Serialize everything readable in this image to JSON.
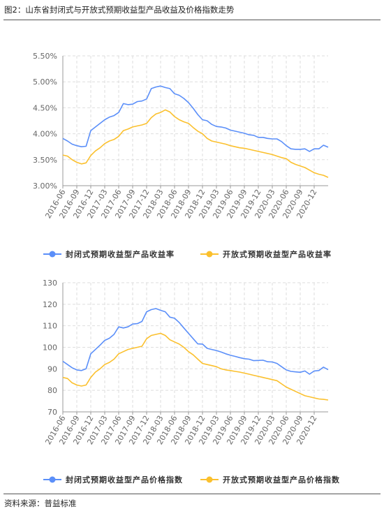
{
  "figure": {
    "title": "图2：山东省封闭式与开放式预期收益型产品收益及价格指数走势",
    "source": "资料来源：普益标准"
  },
  "colors": {
    "blue": "#5B8FF9",
    "yellow": "#FBC02D",
    "grid": "#dedede",
    "axis": "#999999"
  },
  "chart_data": [
    {
      "type": "line",
      "title": "",
      "xlabel": "",
      "ylabel": "",
      "ylim": [
        3.0,
        5.5
      ],
      "y_ticks": [
        "3.00%",
        "3.50%",
        "4.00%",
        "4.50%",
        "5.00%",
        "5.50%"
      ],
      "y_tick_values": [
        3.0,
        3.5,
        4.0,
        4.5,
        5.0,
        5.5
      ],
      "x_ticks": [
        "2016-06",
        "2016-09",
        "2016-12",
        "2017-03",
        "2017-06",
        "2017-09",
        "2017-12",
        "2018-03",
        "2018-06",
        "2018-09",
        "2018-12",
        "2019-03",
        "2019-06",
        "2019-09",
        "2019-12",
        "2020-03",
        "2020-06",
        "2020-09",
        "2020-12"
      ],
      "grid": true,
      "legend_position": "bottom",
      "series": [
        {
          "name": "封闭式预期收益型产品收益率",
          "color": "#5B8FF9",
          "values": [
            3.91,
            3.86,
            3.8,
            3.77,
            3.75,
            3.76,
            4.06,
            4.13,
            4.2,
            4.27,
            4.32,
            4.35,
            4.41,
            4.58,
            4.56,
            4.57,
            4.62,
            4.63,
            4.67,
            4.87,
            4.9,
            4.92,
            4.89,
            4.87,
            4.77,
            4.74,
            4.68,
            4.6,
            4.49,
            4.37,
            4.27,
            4.25,
            4.18,
            4.14,
            4.13,
            4.11,
            4.07,
            4.05,
            4.03,
            4.01,
            3.98,
            3.97,
            3.93,
            3.93,
            3.91,
            3.9,
            3.9,
            3.85,
            3.77,
            3.71,
            3.7,
            3.7,
            3.71,
            3.66,
            3.71,
            3.71,
            3.78,
            3.74
          ]
        },
        {
          "name": "开放式预期收益型产品收益率",
          "color": "#FBC02D",
          "values": [
            3.59,
            3.57,
            3.5,
            3.45,
            3.42,
            3.44,
            3.58,
            3.67,
            3.73,
            3.81,
            3.86,
            3.89,
            3.95,
            4.06,
            4.09,
            4.13,
            4.15,
            4.17,
            4.2,
            4.31,
            4.38,
            4.41,
            4.46,
            4.42,
            4.33,
            4.27,
            4.23,
            4.2,
            4.12,
            4.05,
            4.0,
            3.91,
            3.86,
            3.84,
            3.82,
            3.8,
            3.77,
            3.75,
            3.73,
            3.72,
            3.7,
            3.68,
            3.66,
            3.64,
            3.62,
            3.6,
            3.57,
            3.54,
            3.52,
            3.45,
            3.41,
            3.38,
            3.35,
            3.3,
            3.25,
            3.22,
            3.2,
            3.16
          ]
        }
      ]
    },
    {
      "type": "line",
      "title": "",
      "xlabel": "",
      "ylabel": "",
      "ylim": [
        70,
        130
      ],
      "y_ticks": [
        "70",
        "80",
        "90",
        "100",
        "110",
        "120",
        "130"
      ],
      "y_tick_values": [
        70,
        80,
        90,
        100,
        110,
        120,
        130
      ],
      "x_ticks": [
        "2016-06",
        "2016-09",
        "2016-12",
        "2017-03",
        "2017-06",
        "2017-09",
        "2017-12",
        "2018-03",
        "2018-06",
        "2018-09",
        "2018-12",
        "2019-03",
        "2019-06",
        "2019-09",
        "2019-12",
        "2020-03",
        "2020-06",
        "2020-09",
        "2020-12"
      ],
      "grid": true,
      "legend_position": "bottom",
      "series": [
        {
          "name": "封闭式预期收益型产品价格指数",
          "color": "#5B8FF9",
          "values": [
            93.5,
            92.0,
            90.5,
            89.5,
            89.2,
            90.0,
            97.0,
            99.0,
            101.0,
            103.2,
            104.2,
            106.0,
            109.5,
            109.0,
            109.5,
            110.8,
            111.0,
            112.0,
            116.5,
            117.5,
            118.0,
            117.2,
            116.5,
            114.0,
            113.5,
            111.5,
            109.0,
            106.5,
            104.0,
            101.6,
            101.5,
            99.5,
            99.0,
            98.5,
            97.8,
            97.0,
            96.3,
            95.8,
            95.2,
            94.7,
            94.5,
            93.8,
            93.9,
            94.0,
            93.3,
            93.2,
            92.5,
            91.0,
            89.5,
            88.8,
            88.6,
            88.4,
            89.0,
            87.5,
            89.0,
            89.2,
            90.8,
            89.6
          ]
        },
        {
          "name": "开放式预期收益型产品价格指数",
          "color": "#FBC02D",
          "values": [
            86.0,
            85.5,
            83.5,
            82.5,
            82.0,
            82.5,
            86.0,
            88.5,
            90.0,
            92.0,
            93.0,
            94.5,
            97.0,
            98.0,
            99.0,
            99.5,
            100.0,
            100.5,
            104.0,
            105.5,
            106.0,
            106.5,
            105.5,
            103.5,
            102.5,
            101.5,
            100.0,
            98.0,
            96.5,
            94.5,
            92.5,
            92.0,
            91.5,
            91.0,
            90.0,
            89.5,
            89.2,
            88.8,
            88.5,
            88.0,
            87.5,
            87.0,
            86.5,
            86.0,
            85.5,
            85.0,
            84.5,
            83.0,
            81.5,
            80.5,
            79.5,
            78.5,
            77.5,
            77.0,
            76.5,
            76.0,
            75.8,
            75.5
          ]
        }
      ]
    }
  ]
}
